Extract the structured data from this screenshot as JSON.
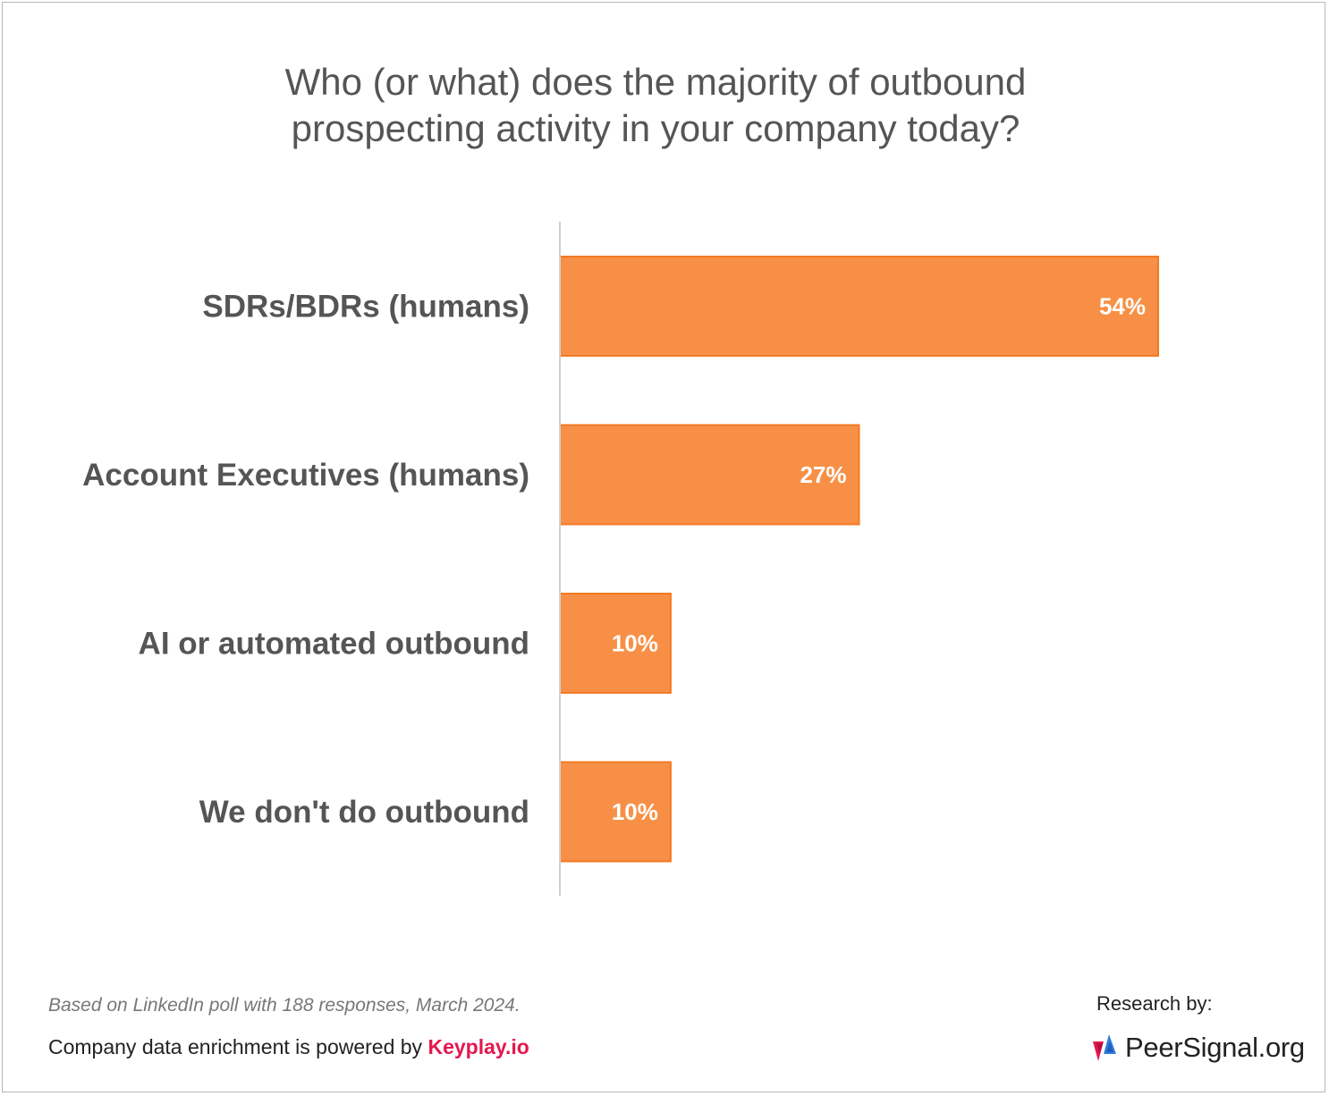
{
  "title_lines": [
    "Who (or what) does the majority of outbound",
    "prospecting activity in your company today?"
  ],
  "chart_data": {
    "type": "bar",
    "orientation": "horizontal",
    "categories": [
      "SDRs/BDRs (humans)",
      "Account Executives (humans)",
      "AI or automated outbound",
      "We don't do outbound"
    ],
    "values": [
      54,
      27,
      10,
      10
    ],
    "value_labels": [
      "54%",
      "27%",
      "10%",
      "10%"
    ],
    "unit": "%",
    "xlim": [
      0,
      54
    ],
    "grid": false,
    "bar_color": "#f79046",
    "bar_edge_color": "#f27a23"
  },
  "footnote": "Based on LinkedIn poll with 188 responses, March 2024.",
  "credit": {
    "prefix": "Company data enrichment is powered by",
    "brand": "Keyplay.io",
    "brand_color": "#e5174f"
  },
  "research": {
    "label": "Research by:",
    "logo_text": "PeerSignal.org",
    "logo_icon": "peersignal-logo-icon",
    "logo_colors": [
      "#e5174f",
      "#2f7de1"
    ]
  }
}
